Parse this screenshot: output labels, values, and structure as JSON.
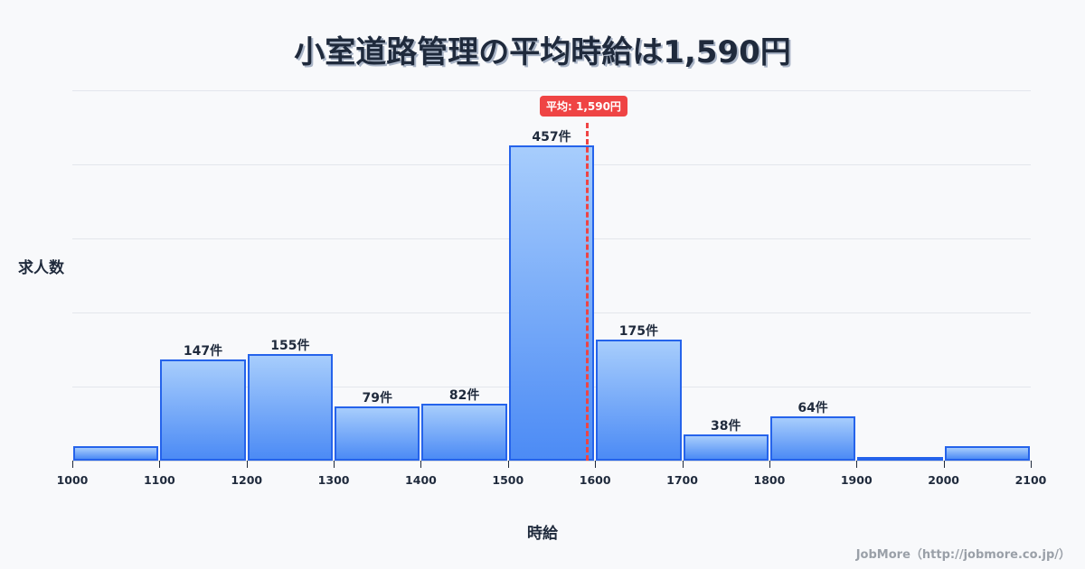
{
  "title": "小室道路管理の平均時給は1,590円",
  "y_axis_label": "求人数",
  "x_axis_label": "時給",
  "mean_badge": "平均: 1,590円",
  "credit": "JobMore（http://jobmore.co.jp/）",
  "colors": {
    "bar_border": "#2563eb",
    "bar_top": "#a7cdfc",
    "bar_bottom": "#4c8bf5",
    "mean_line": "#ef4444",
    "text": "#1f2a3c",
    "background": "#f8f9fb"
  },
  "chart_data": {
    "type": "bar",
    "title": "小室道路管理の平均時給は1,590円",
    "xlabel": "時給",
    "ylabel": "求人数",
    "bin_edges": [
      1000,
      1100,
      1200,
      1300,
      1400,
      1500,
      1600,
      1700,
      1800,
      1900,
      2000,
      2100
    ],
    "categories": [
      "1000-1100",
      "1100-1200",
      "1200-1300",
      "1300-1400",
      "1400-1500",
      "1500-1600",
      "1600-1700",
      "1700-1800",
      "1800-1900",
      "1900-2000",
      "2000-2100"
    ],
    "values": [
      21,
      147,
      155,
      79,
      82,
      457,
      175,
      38,
      64,
      5,
      21
    ],
    "labels": [
      "",
      "147件",
      "155件",
      "79件",
      "82件",
      "457件",
      "175件",
      "38件",
      "64件",
      "",
      ""
    ],
    "x_ticks": [
      "1000",
      "1100",
      "1200",
      "1300",
      "1400",
      "1500",
      "1600",
      "1700",
      "1800",
      "1900",
      "2000",
      "2100"
    ],
    "mean": 1590,
    "mean_label": "平均: 1,590円",
    "xlim": [
      1000,
      2100
    ],
    "ylim": [
      0,
      537
    ],
    "grid": true,
    "legend": null
  }
}
